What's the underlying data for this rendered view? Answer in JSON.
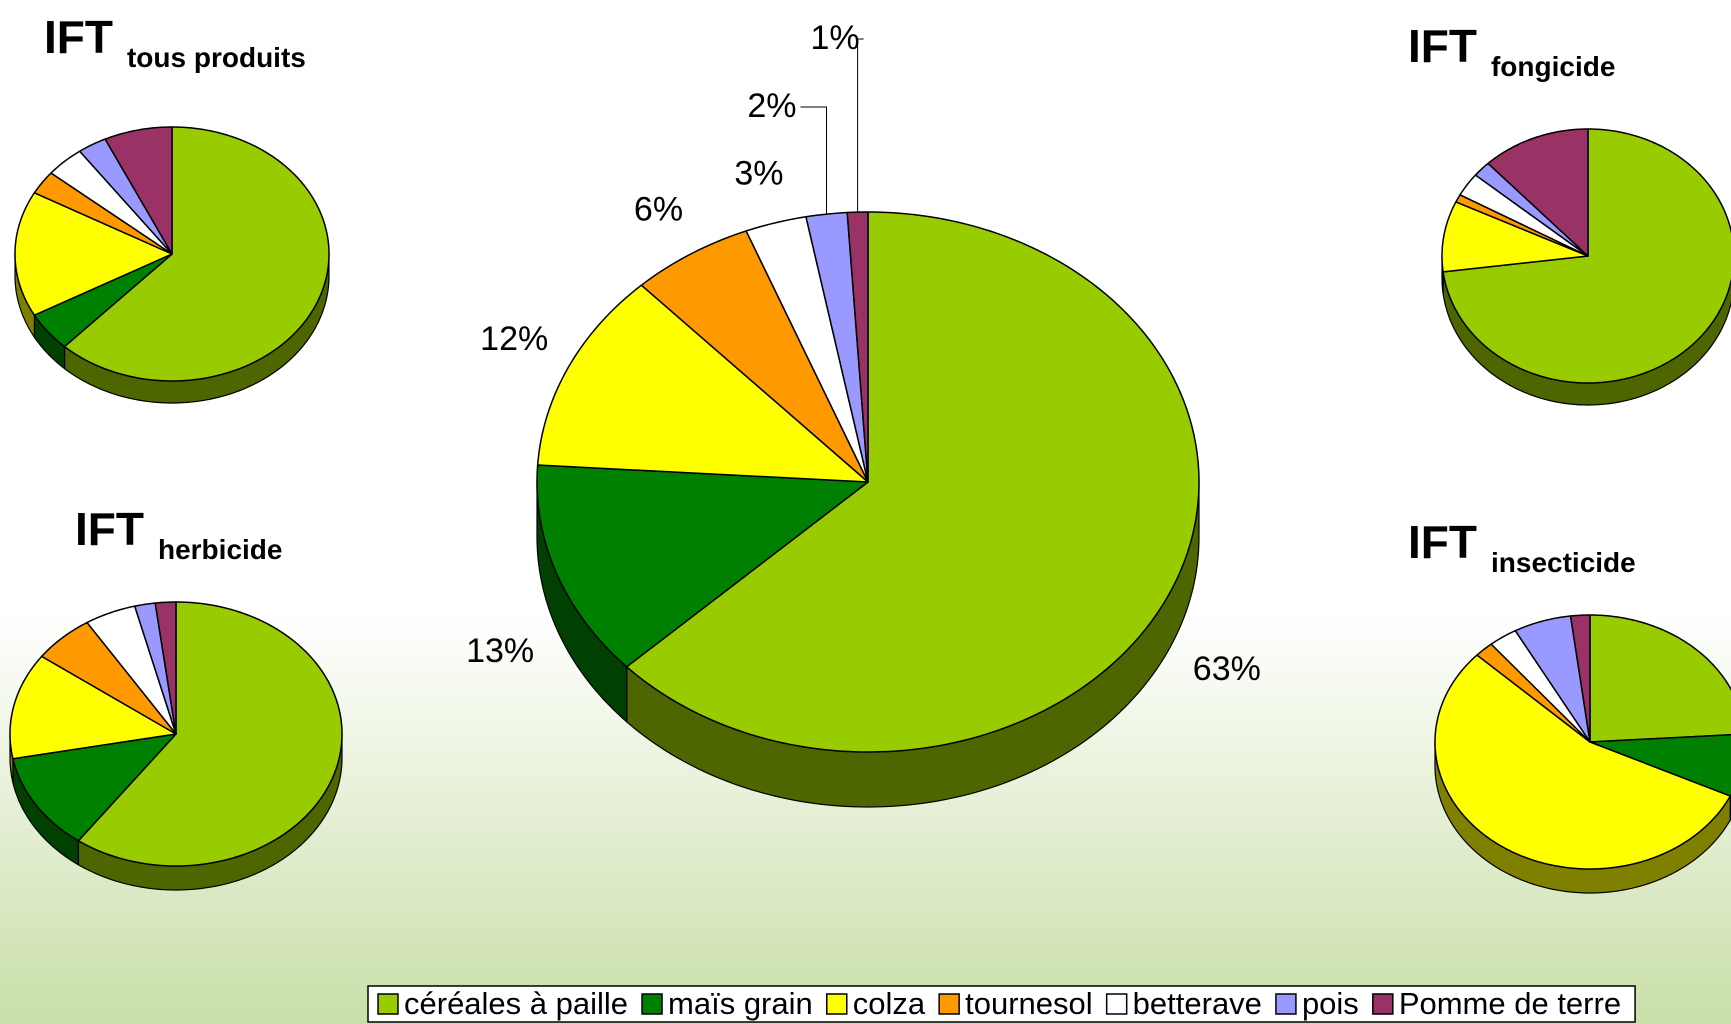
{
  "chart_data": [
    {
      "type": "pie3d",
      "role": "main",
      "categories": [
        "céréales à paille",
        "maïs grain",
        "colza",
        "tournesol",
        "betterave",
        "pois",
        "Pomme de terre"
      ],
      "values": [
        63,
        13,
        12,
        6,
        3,
        2,
        1
      ],
      "value_labels": [
        "63%",
        "13%",
        "12%",
        "6%",
        "3%",
        "2%",
        "1%"
      ],
      "colors": [
        "#99cc00",
        "#008000",
        "#ffff00",
        "#ff9900",
        "#ffffff",
        "#9999ff",
        "#993366"
      ]
    },
    {
      "type": "pie3d",
      "title": "IFT",
      "title_sub": "tous produits",
      "values": [
        62,
        5,
        16,
        3,
        4,
        3,
        7
      ],
      "colors": [
        "#99cc00",
        "#008000",
        "#ffff00",
        "#ff9900",
        "#ffffff",
        "#9999ff",
        "#993366"
      ]
    },
    {
      "type": "pie3d",
      "title": "IFT",
      "title_sub": "fongicide",
      "values": [
        73,
        0,
        9,
        1,
        3,
        2,
        12
      ],
      "colors": [
        "#99cc00",
        "#008000",
        "#ffff00",
        "#ff9900",
        "#ffffff",
        "#9999ff",
        "#993366"
      ]
    },
    {
      "type": "pie3d",
      "title": "IFT",
      "title_sub": "herbicide",
      "values": [
        60,
        12,
        13,
        6,
        5,
        2,
        2
      ],
      "colors": [
        "#99cc00",
        "#008000",
        "#ffff00",
        "#ff9900",
        "#ffffff",
        "#9999ff",
        "#993366"
      ]
    },
    {
      "type": "pie3d",
      "title": "IFT",
      "title_sub": "insecticide",
      "values": [
        24,
        8,
        55,
        2,
        3,
        6,
        2
      ],
      "colors": [
        "#99cc00",
        "#008000",
        "#ffff00",
        "#ff9900",
        "#ffffff",
        "#9999ff",
        "#993366"
      ]
    }
  ]
}
